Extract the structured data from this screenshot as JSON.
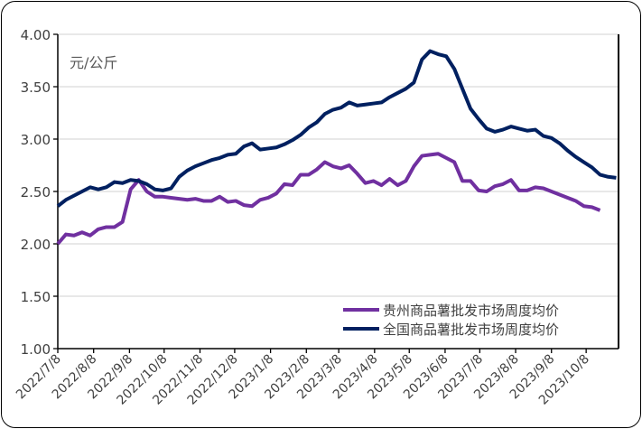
{
  "chart_data": {
    "type": "line",
    "unit_label": "元/公斤",
    "ylim": [
      1.0,
      4.0
    ],
    "yticks": [
      "1.00",
      "1.50",
      "2.00",
      "2.50",
      "3.00",
      "3.50",
      "4.00"
    ],
    "xticks": [
      "2022/7/8",
      "2022/8/8",
      "2022/9/8",
      "2022/10/8",
      "2022/11/8",
      "2022/12/8",
      "2023/1/8",
      "2023/2/8",
      "2023/3/8",
      "2023/4/8",
      "2023/5/8",
      "2023/6/8",
      "2023/7/8",
      "2023/8/8",
      "2023/9/8",
      "2023/10/8"
    ],
    "x_frequency": "weekly",
    "x_start": "2022-07-08",
    "grid": "horizontal",
    "legend_position": "bottom-right",
    "series": [
      {
        "name": "贵州商品薯批发市场周度均价",
        "color": "#7030A0",
        "values": [
          2.0,
          2.09,
          2.08,
          2.11,
          2.08,
          2.14,
          2.16,
          2.16,
          2.21,
          2.52,
          2.61,
          2.5,
          2.45,
          2.45,
          2.44,
          2.43,
          2.42,
          2.43,
          2.41,
          2.41,
          2.45,
          2.4,
          2.41,
          2.37,
          2.36,
          2.42,
          2.44,
          2.48,
          2.57,
          2.56,
          2.66,
          2.66,
          2.71,
          2.78,
          2.74,
          2.72,
          2.75,
          2.67,
          2.58,
          2.6,
          2.56,
          2.62,
          2.56,
          2.6,
          2.74,
          2.84,
          2.85,
          2.86,
          2.82,
          2.78,
          2.6,
          2.6,
          2.51,
          2.5,
          2.55,
          2.57,
          2.61,
          2.51,
          2.51,
          2.54,
          2.53,
          2.5,
          2.47,
          2.44,
          2.41,
          2.36,
          2.35,
          2.32
        ]
      },
      {
        "name": "全国商品薯批发市场周度均价",
        "color": "#002060",
        "values": [
          2.36,
          2.42,
          2.46,
          2.5,
          2.54,
          2.52,
          2.54,
          2.59,
          2.58,
          2.61,
          2.6,
          2.57,
          2.52,
          2.51,
          2.53,
          2.64,
          2.7,
          2.74,
          2.77,
          2.8,
          2.82,
          2.85,
          2.86,
          2.93,
          2.96,
          2.9,
          2.91,
          2.92,
          2.95,
          2.99,
          3.04,
          3.11,
          3.16,
          3.24,
          3.28,
          3.3,
          3.35,
          3.32,
          3.33,
          3.34,
          3.35,
          3.4,
          3.44,
          3.48,
          3.54,
          3.76,
          3.84,
          3.81,
          3.79,
          3.67,
          3.48,
          3.29,
          3.19,
          3.1,
          3.07,
          3.09,
          3.12,
          3.1,
          3.08,
          3.09,
          3.03,
          3.01,
          2.96,
          2.89,
          2.83,
          2.78,
          2.73,
          2.66,
          2.64,
          2.63
        ]
      }
    ]
  }
}
